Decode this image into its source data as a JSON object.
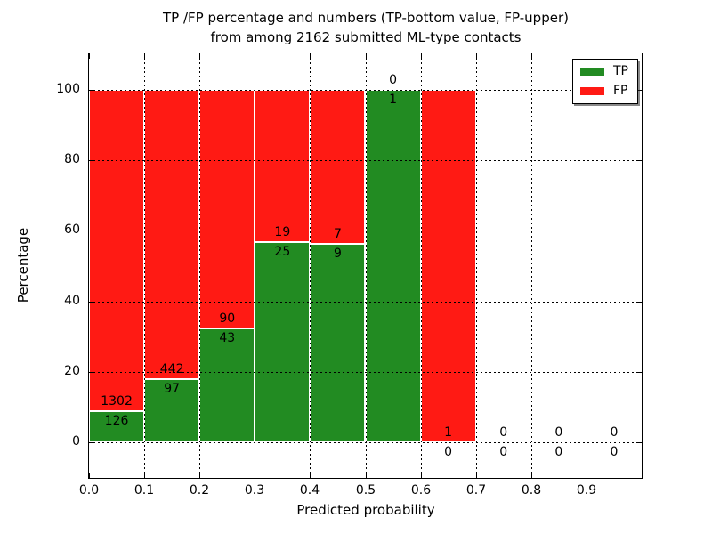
{
  "figure": {
    "title_line1": "TP /FP percentage and numbers (TP-bottom value, FP-upper)",
    "title_line2": "from among 2162 submitted ML-type contacts"
  },
  "chart_data": {
    "type": "bar",
    "stacked": true,
    "unit": "percent_of_bin",
    "title": "TP /FP percentage and numbers (TP-bottom value, FP-upper)\nfrom among 2162 submitted ML-type contacts",
    "xlabel": "Predicted probability",
    "ylabel": "Percentage",
    "total_contacts": 2162,
    "bins": [
      {
        "range": [
          0.0,
          0.1
        ],
        "tp": 126,
        "fp": 1302,
        "tp_percent": 8.8
      },
      {
        "range": [
          0.1,
          0.2
        ],
        "tp": 97,
        "fp": 442,
        "tp_percent": 18.0
      },
      {
        "range": [
          0.2,
          0.3
        ],
        "tp": 43,
        "fp": 90,
        "tp_percent": 32.3
      },
      {
        "range": [
          0.3,
          0.4
        ],
        "tp": 25,
        "fp": 19,
        "tp_percent": 56.8
      },
      {
        "range": [
          0.4,
          0.5
        ],
        "tp": 9,
        "fp": 7,
        "tp_percent": 56.3
      },
      {
        "range": [
          0.5,
          0.6
        ],
        "tp": 1,
        "fp": 0,
        "tp_percent": 100.0
      },
      {
        "range": [
          0.6,
          0.7
        ],
        "tp": 0,
        "fp": 1,
        "tp_percent": 0.0
      },
      {
        "range": [
          0.7,
          0.8
        ],
        "tp": 0,
        "fp": 0,
        "tp_percent": null
      },
      {
        "range": [
          0.8,
          0.9
        ],
        "tp": 0,
        "fp": 0,
        "tp_percent": null
      },
      {
        "range": [
          0.9,
          1.0
        ],
        "tp": 0,
        "fp": 0,
        "tp_percent": null
      }
    ],
    "series": [
      {
        "name": "TP",
        "color": "#228b22"
      },
      {
        "name": "FP",
        "color": "#ff1a14"
      }
    ],
    "xticks": [
      "0.0",
      "0.1",
      "0.2",
      "0.3",
      "0.4",
      "0.5",
      "0.6",
      "0.7",
      "0.8",
      "0.9"
    ],
    "yticks": [
      "0",
      "20",
      "40",
      "60",
      "80",
      "100"
    ],
    "xlim": [
      0,
      1.0
    ],
    "ylim": [
      -10,
      110.3
    ],
    "grid": {
      "style": "dotted",
      "color": "#000000",
      "on_top_of_bars": true
    },
    "legend": {
      "position": "upper right",
      "entries": [
        {
          "label": "TP",
          "color": "#228b22"
        },
        {
          "label": "FP",
          "color": "#ff1a14"
        }
      ]
    }
  }
}
